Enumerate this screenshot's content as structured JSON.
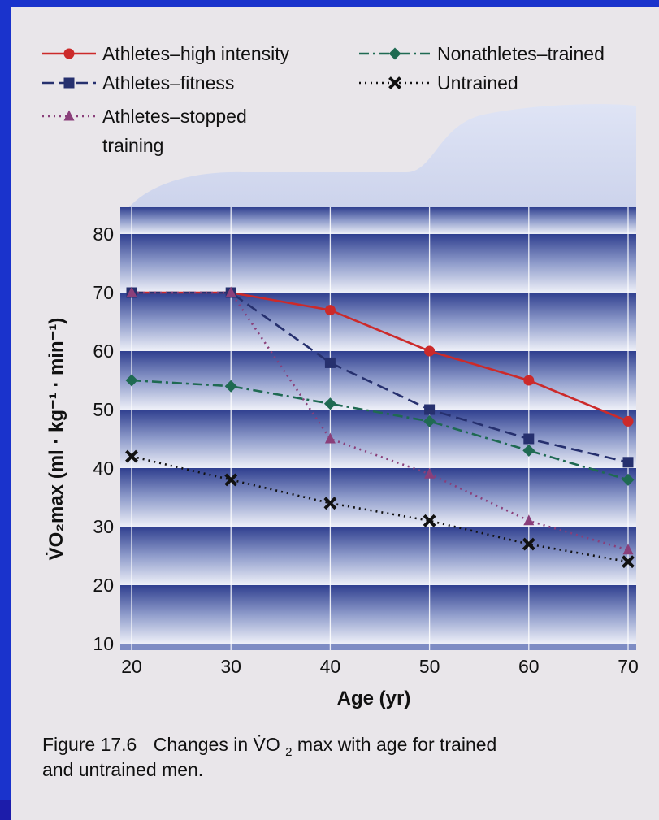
{
  "chart_data": {
    "type": "line",
    "x": [
      20,
      30,
      40,
      50,
      60,
      70
    ],
    "xlabel": "Age (yr)",
    "ylabel": "V̇O₂max (ml · kg⁻¹ · min⁻¹)",
    "xlim": [
      20,
      70
    ],
    "ylim": [
      10,
      80
    ],
    "xticks": [
      "20",
      "30",
      "40",
      "50",
      "60",
      "70"
    ],
    "yticks": [
      "10",
      "20",
      "30",
      "40",
      "50",
      "60",
      "70",
      "80"
    ],
    "grid": true,
    "legend_position": "top",
    "series": [
      {
        "name": "Athletes–high intensity",
        "values": [
          70,
          70,
          67,
          60,
          55,
          48
        ],
        "color": "#cc2a2a",
        "marker": "circle",
        "dash": "solid"
      },
      {
        "name": "Athletes–fitness",
        "values": [
          70,
          70,
          58,
          50,
          45,
          41
        ],
        "color": "#26306e",
        "marker": "square",
        "dash": "dashed"
      },
      {
        "name": "Athletes–stopped training",
        "values": [
          70,
          70,
          45,
          39,
          31,
          26
        ],
        "color": "#8a3f7a",
        "marker": "triangle",
        "dash": "dotted"
      },
      {
        "name": "Nonathletes–trained",
        "values": [
          55,
          54,
          51,
          48,
          43,
          38
        ],
        "color": "#1f6a52",
        "marker": "diamond",
        "dash": "dashdot"
      },
      {
        "name": "Untrained",
        "values": [
          42,
          38,
          34,
          31,
          27,
          24
        ],
        "color": "#111111",
        "marker": "x",
        "dash": "dotted"
      }
    ]
  },
  "caption": {
    "figure_label": "Figure 17.6",
    "text_line1_prefix": "Changes in ",
    "text_line1_suffix": "max with age for trained",
    "text_line2": "and untrained men."
  }
}
